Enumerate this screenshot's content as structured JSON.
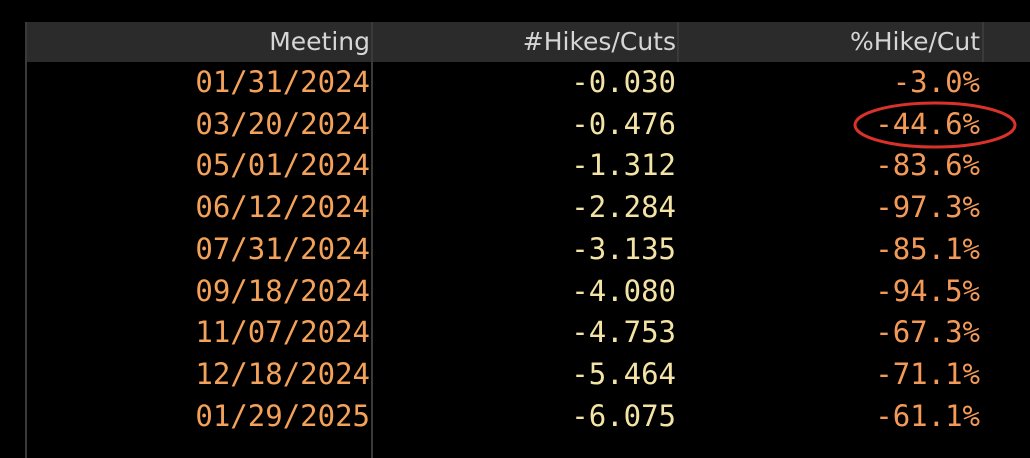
{
  "table": {
    "headers": [
      "Meeting",
      "#Hikes/Cuts",
      "%Hike/Cut"
    ],
    "rows": [
      [
        "01/31/2024",
        "-0.030",
        "-3.0%"
      ],
      [
        "03/20/2024",
        "-0.476",
        "-44.6%"
      ],
      [
        "05/01/2024",
        "-1.312",
        "-83.6%"
      ],
      [
        "06/12/2024",
        "-2.284",
        "-97.3%"
      ],
      [
        "07/31/2024",
        "-3.135",
        "-85.1%"
      ],
      [
        "09/18/2024",
        "-4.080",
        "-94.5%"
      ],
      [
        "11/07/2024",
        "-4.753",
        "-67.3%"
      ],
      [
        "12/18/2024",
        "-5.464",
        "-71.1%"
      ],
      [
        "01/29/2025",
        "-6.075",
        "-61.1%"
      ]
    ]
  }
}
